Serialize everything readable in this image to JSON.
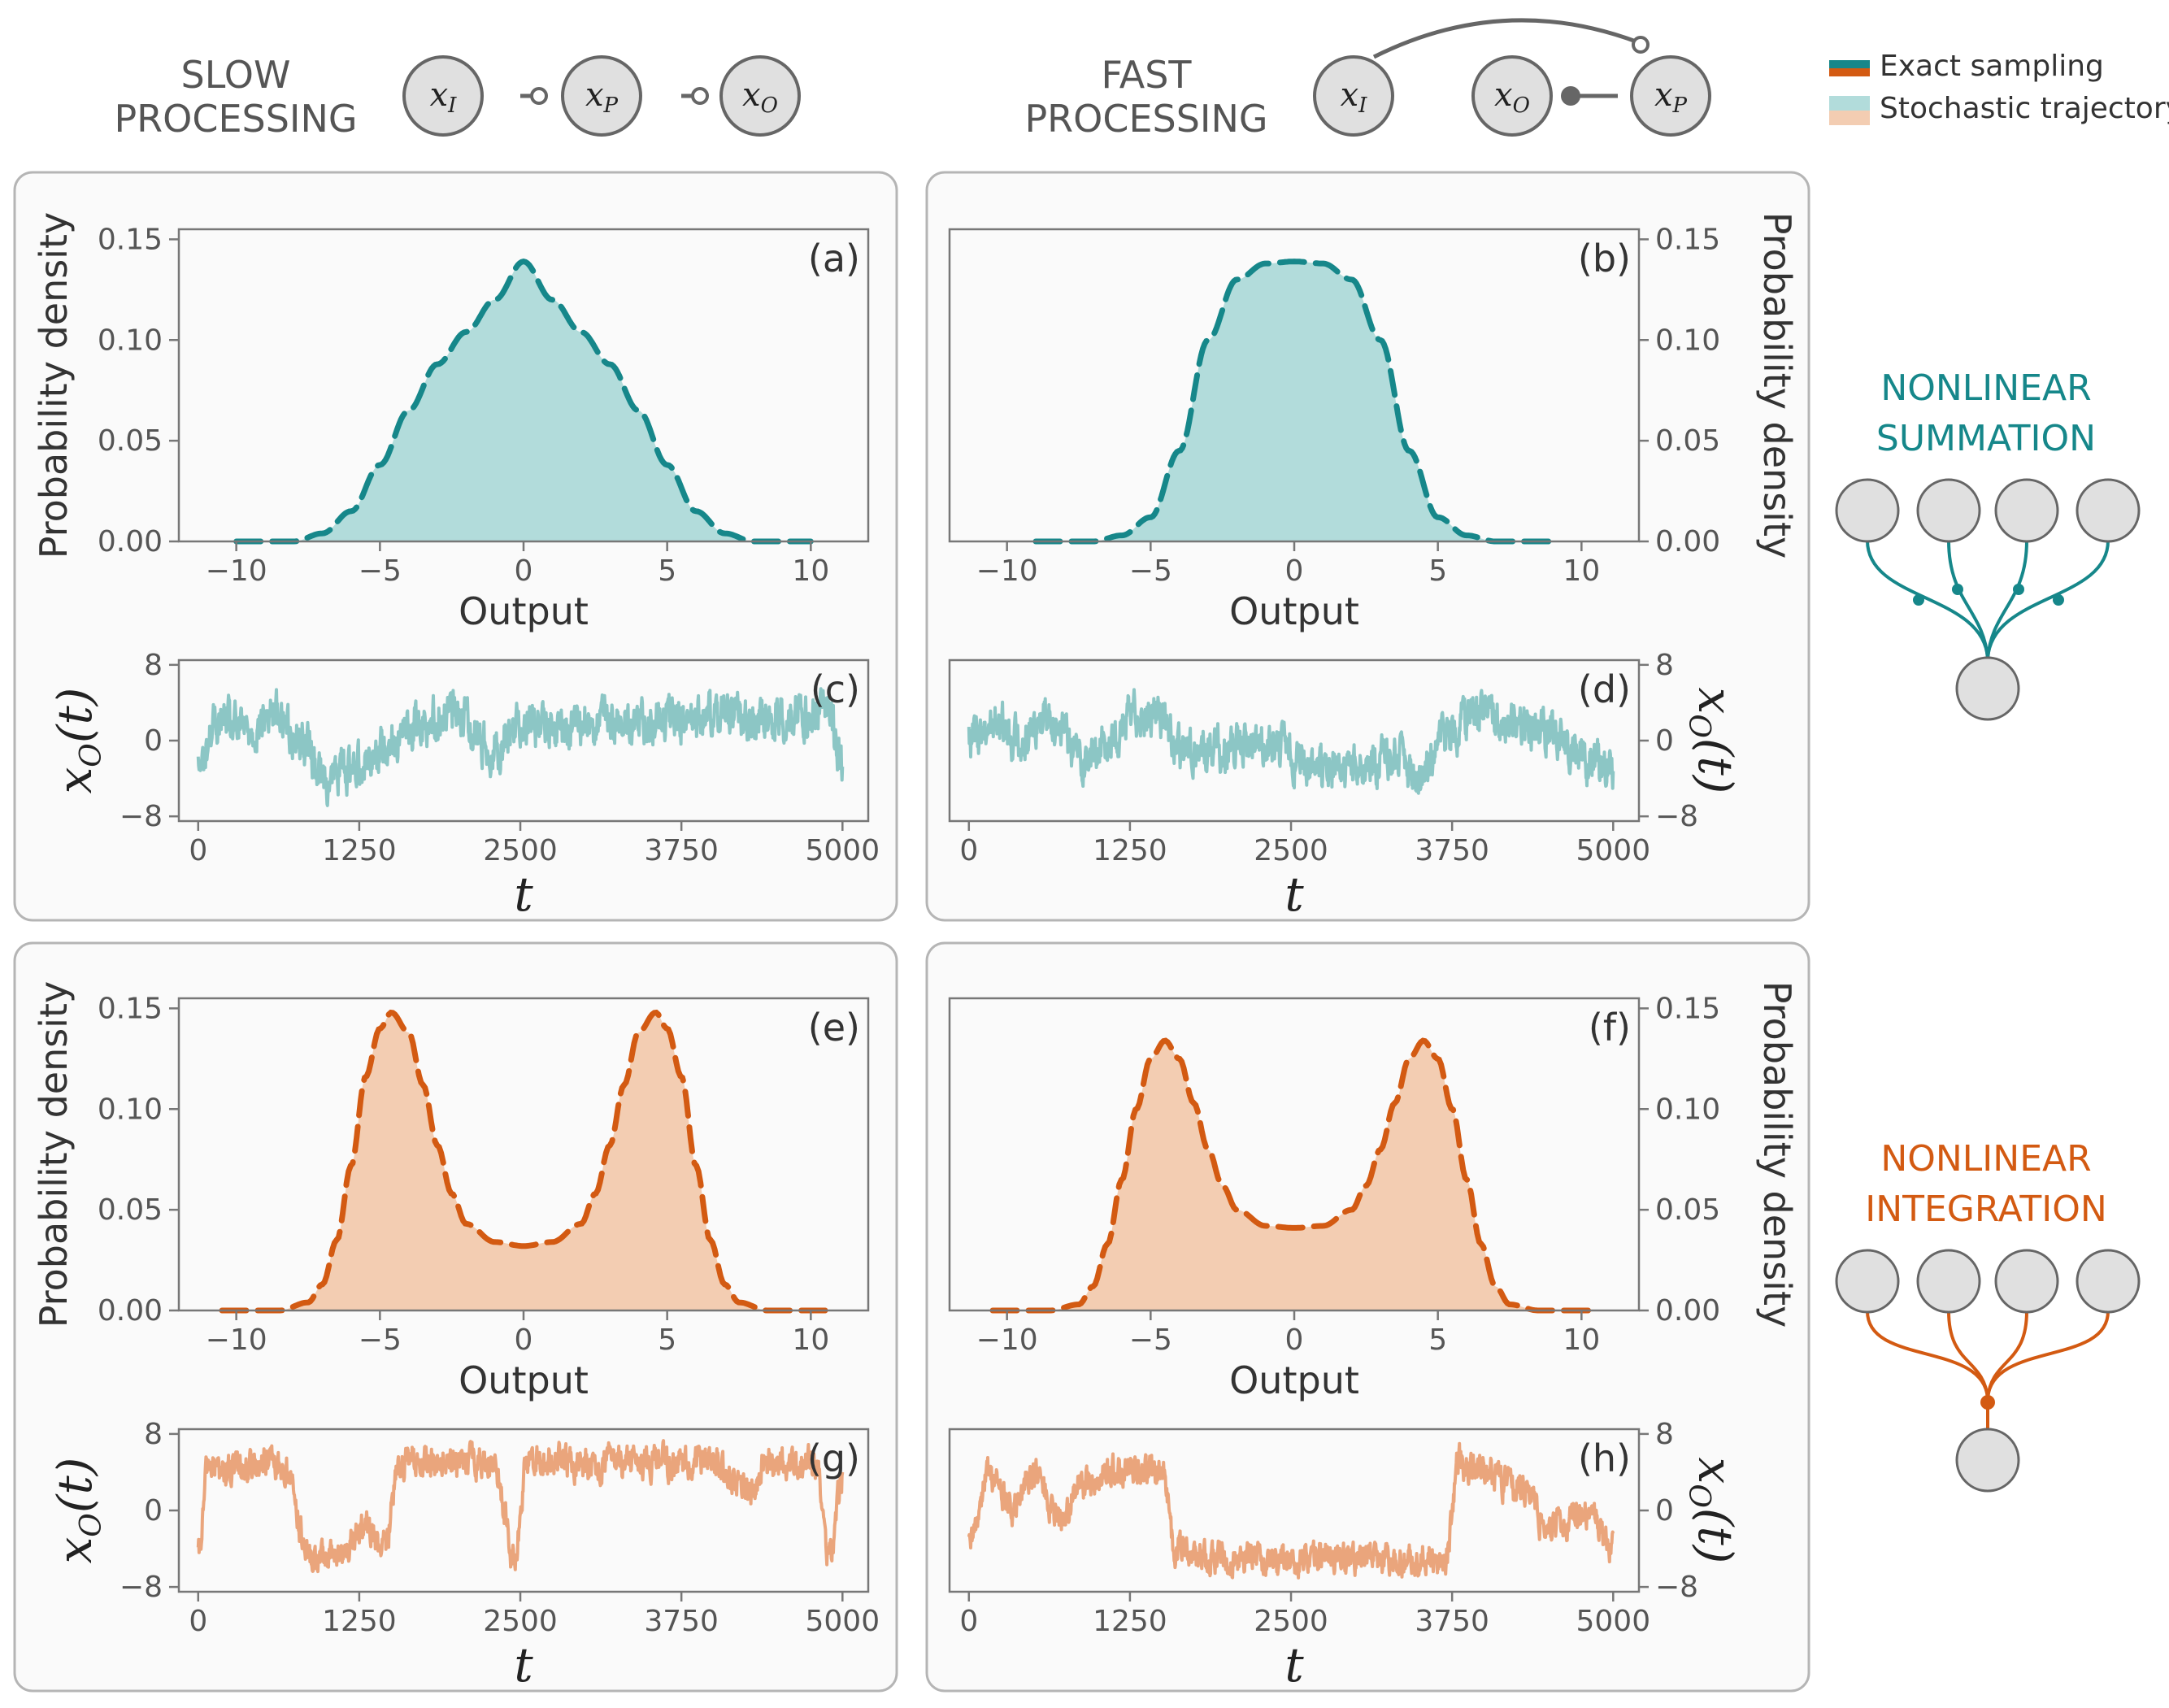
{
  "colors": {
    "teal": "#16878a",
    "teal_fill": "#b2dcdb",
    "teal_trace": "#8cc6c5",
    "orange": "#d35a12",
    "orange_fill": "#f3cdb2",
    "orange_trace": "#eaa57c",
    "node_fill": "#e0e0e0",
    "node_stroke": "#666666",
    "panel_bg": "#fafafa",
    "panel_border": "#b5b5b5"
  },
  "legend": {
    "exact": "Exact sampling",
    "stochastic": "Stochastic trajectory"
  },
  "headers": {
    "slow_line1": "SLOW",
    "slow_line2": "PROCESSING",
    "fast_line1": "FAST",
    "fast_line2": "PROCESSING"
  },
  "slow_network": {
    "nodes": [
      "I",
      "P",
      "O"
    ],
    "arrows": "x_I → x_P → x_O (open-circle heads)"
  },
  "fast_network": {
    "nodes": [
      "I",
      "O",
      "P"
    ]
  },
  "side_labels": {
    "summation_line1": "NONLINEAR",
    "summation_line2": "SUMMATION",
    "integration_line1": "NONLINEAR",
    "integration_line2": "INTEGRATION"
  },
  "axis_text": {
    "density_ylabel": "Probability density",
    "output_xlabel": "Output",
    "t_xlabel": "t",
    "trace_ylabel": "x_O(t)"
  },
  "chart_data": [
    {
      "id": "a",
      "panel_label": "(a)",
      "type": "line",
      "title": "",
      "xlabel": "Output",
      "ylabel": "Probability density",
      "xlim": [
        -12,
        12
      ],
      "ylim": [
        0,
        0.155
      ],
      "xticks": [
        -10,
        -5,
        0,
        5,
        10
      ],
      "xtick_labels": [
        "−10",
        "−5",
        "0",
        "5",
        "10"
      ],
      "yticks": [
        0,
        0.05,
        0.1,
        0.15
      ],
      "ytick_labels": [
        "0.00",
        "0.05",
        "0.10",
        "0.15"
      ],
      "ylabel_side": "left",
      "color": "teal",
      "series": [
        {
          "name": "Exact sampling",
          "style": "dashed",
          "x": [
            -10,
            -8,
            -7,
            -6,
            -5,
            -4,
            -3,
            -2,
            -1,
            0,
            1,
            2,
            3,
            4,
            5,
            6,
            7,
            8,
            10
          ],
          "y": [
            0,
            0,
            0.004,
            0.015,
            0.038,
            0.065,
            0.088,
            0.104,
            0.12,
            0.139,
            0.12,
            0.104,
            0.088,
            0.065,
            0.038,
            0.015,
            0.004,
            0,
            0
          ]
        }
      ],
      "fill_series": {
        "name": "Stochastic trajectory",
        "style": "histogram-area"
      },
      "grid": false
    },
    {
      "id": "b",
      "panel_label": "(b)",
      "type": "line",
      "title": "",
      "xlabel": "Output",
      "ylabel": "Probability density",
      "xlim": [
        -12,
        12
      ],
      "ylim": [
        0,
        0.155
      ],
      "xticks": [
        -10,
        -5,
        0,
        5,
        10
      ],
      "xtick_labels": [
        "−10",
        "−5",
        "0",
        "5",
        "10"
      ],
      "yticks": [
        0,
        0.05,
        0.1,
        0.15
      ],
      "ytick_labels": [
        "0.00",
        "0.05",
        "0.10",
        "0.15"
      ],
      "ylabel_side": "right",
      "color": "teal",
      "series": [
        {
          "name": "Exact sampling",
          "style": "dashed",
          "x": [
            -9,
            -7,
            -6,
            -5,
            -4,
            -3,
            -2,
            -1,
            0,
            1,
            2,
            3,
            4,
            5,
            6,
            7,
            9
          ],
          "y": [
            0,
            0,
            0.003,
            0.012,
            0.045,
            0.1,
            0.13,
            0.138,
            0.139,
            0.138,
            0.13,
            0.1,
            0.045,
            0.012,
            0.003,
            0,
            0
          ]
        }
      ],
      "fill_series": {
        "name": "Stochastic trajectory",
        "style": "histogram-area"
      },
      "grid": false
    },
    {
      "id": "e",
      "panel_label": "(e)",
      "type": "line",
      "title": "",
      "xlabel": "Output",
      "ylabel": "Probability density",
      "xlim": [
        -12,
        12
      ],
      "ylim": [
        0,
        0.155
      ],
      "xticks": [
        -10,
        -5,
        0,
        5,
        10
      ],
      "xtick_labels": [
        "−10",
        "−5",
        "0",
        "5",
        "10"
      ],
      "yticks": [
        0,
        0.05,
        0.1,
        0.15
      ],
      "ytick_labels": [
        "0.00",
        "0.05",
        "0.10",
        "0.15"
      ],
      "ylabel_side": "left",
      "color": "orange",
      "series": [
        {
          "name": "Exact sampling",
          "style": "dashed",
          "x": [
            -10.5,
            -8.5,
            -7.5,
            -7,
            -6.5,
            -6,
            -5.5,
            -5,
            -4.6,
            -4,
            -3.5,
            -3,
            -2.5,
            -2,
            -1,
            0,
            1,
            2,
            2.5,
            3,
            3.5,
            4,
            4.6,
            5,
            5.5,
            6,
            6.5,
            7,
            7.5,
            8.5,
            10.5
          ],
          "y": [
            0,
            0,
            0.004,
            0.013,
            0.035,
            0.072,
            0.116,
            0.14,
            0.148,
            0.138,
            0.112,
            0.082,
            0.058,
            0.043,
            0.034,
            0.032,
            0.034,
            0.043,
            0.058,
            0.082,
            0.112,
            0.138,
            0.148,
            0.14,
            0.116,
            0.072,
            0.035,
            0.013,
            0.004,
            0,
            0
          ]
        }
      ],
      "fill_series": {
        "name": "Stochastic trajectory",
        "style": "histogram-area"
      },
      "grid": false
    },
    {
      "id": "f",
      "panel_label": "(f)",
      "type": "line",
      "title": "",
      "xlabel": "Output",
      "ylabel": "Probability density",
      "xlim": [
        -12,
        12
      ],
      "ylim": [
        0,
        0.155
      ],
      "xticks": [
        -10,
        -5,
        0,
        5,
        10
      ],
      "xtick_labels": [
        "−10",
        "−5",
        "0",
        "5",
        "10"
      ],
      "yticks": [
        0,
        0.05,
        0.1,
        0.15
      ],
      "ytick_labels": [
        "0.00",
        "0.05",
        "0.10",
        "0.15"
      ],
      "ylabel_side": "right",
      "color": "orange",
      "series": [
        {
          "name": "Exact sampling",
          "style": "dashed",
          "x": [
            -10.5,
            -8.5,
            -7.5,
            -7,
            -6.5,
            -6,
            -5.5,
            -5,
            -4.5,
            -4,
            -3.5,
            -3,
            -2.5,
            -2,
            -1,
            0,
            1,
            2,
            2.5,
            3,
            3.5,
            4,
            4.5,
            5,
            5.5,
            6,
            6.5,
            7,
            7.5,
            8.5,
            10.5
          ],
          "y": [
            0,
            0,
            0.003,
            0.012,
            0.033,
            0.065,
            0.1,
            0.125,
            0.134,
            0.125,
            0.103,
            0.08,
            0.062,
            0.05,
            0.042,
            0.041,
            0.042,
            0.05,
            0.062,
            0.08,
            0.103,
            0.125,
            0.134,
            0.125,
            0.1,
            0.065,
            0.033,
            0.012,
            0.003,
            0,
            0
          ]
        }
      ],
      "fill_series": {
        "name": "Stochastic trajectory",
        "style": "histogram-area"
      },
      "grid": false
    },
    {
      "id": "c",
      "panel_label": "(c)",
      "type": "line",
      "xlabel": "t",
      "ylabel": "x_O(t)",
      "ylabel_side": "left",
      "xlim": [
        -150,
        5200
      ],
      "ylim": [
        -8.5,
        8.5
      ],
      "xticks": [
        0,
        1250,
        2500,
        3750,
        5000
      ],
      "xtick_labels": [
        "0",
        "1250",
        "2500",
        "3750",
        "5000"
      ],
      "yticks": [
        -8,
        0,
        8
      ],
      "ytick_labels": [
        "−8",
        "0",
        "8"
      ],
      "color": "teal_trace",
      "trace_style": "noisy-summation",
      "anchors_t": [
        0,
        150,
        400,
        600,
        800,
        1000,
        1150,
        1300,
        1500,
        1750,
        2000,
        2300,
        2500,
        2800,
        3100,
        3400,
        3750,
        4100,
        4400,
        4700,
        4900,
        5000
      ],
      "anchors_x": [
        -3,
        2,
        1,
        3,
        0,
        -4,
        -3,
        -2,
        0,
        2,
        3,
        -1,
        2,
        1,
        2,
        2,
        2,
        3,
        2,
        3,
        3,
        -3
      ]
    },
    {
      "id": "d",
      "panel_label": "(d)",
      "type": "line",
      "xlabel": "t",
      "ylabel": "x_O(t)",
      "ylabel_side": "right",
      "xlim": [
        -150,
        5200
      ],
      "ylim": [
        -8.5,
        8.5
      ],
      "xticks": [
        0,
        1250,
        2500,
        3750,
        5000
      ],
      "xtick_labels": [
        "0",
        "1250",
        "2500",
        "3750",
        "5000"
      ],
      "yticks": [
        -8,
        0,
        8
      ],
      "ytick_labels": [
        "−8",
        "0",
        "8"
      ],
      "color": "teal_trace",
      "trace_style": "noisy-summation",
      "anchors_t": [
        0,
        200,
        400,
        600,
        900,
        1100,
        1300,
        1500,
        1600,
        2000,
        2300,
        2700,
        3000,
        3300,
        3500,
        3700,
        3900,
        4200,
        4500,
        4800,
        5000
      ],
      "anchors_x": [
        0,
        2,
        0,
        3,
        -2,
        0,
        3,
        3,
        -1,
        -1,
        0,
        -3,
        -3,
        -2,
        -4,
        0,
        3,
        2,
        1,
        -2,
        -3
      ]
    },
    {
      "id": "g",
      "panel_label": "(g)",
      "type": "line",
      "xlabel": "t",
      "ylabel": "x_O(t)",
      "ylabel_side": "left",
      "xlim": [
        -150,
        5200
      ],
      "ylim": [
        -8.5,
        8.5
      ],
      "xticks": [
        0,
        1250,
        2500,
        3750,
        5000
      ],
      "xtick_labels": [
        "0",
        "1250",
        "2500",
        "3750",
        "5000"
      ],
      "yticks": [
        -8,
        0,
        8
      ],
      "ytick_labels": [
        "−8",
        "0",
        "8"
      ],
      "color": "orange_trace",
      "trace_style": "noisy-integration",
      "anchors_t": [
        0,
        80,
        200,
        500,
        700,
        850,
        1000,
        1150,
        1300,
        1450,
        1550,
        1750,
        2000,
        2300,
        2450,
        2550,
        3000,
        3500,
        4000,
        4300,
        4400,
        4800,
        4900,
        5000
      ],
      "anchors_x": [
        -5,
        5,
        4,
        5,
        4,
        -5,
        -5,
        -4,
        -2,
        -4,
        5,
        5,
        5,
        5,
        -5,
        5,
        5,
        5,
        5,
        2,
        5,
        5,
        -5,
        3
      ]
    },
    {
      "id": "h",
      "panel_label": "(h)",
      "type": "line",
      "xlabel": "t",
      "ylabel": "x_O(t)",
      "ylabel_side": "right",
      "xlim": [
        -150,
        5200
      ],
      "ylim": [
        -8.5,
        8.5
      ],
      "xticks": [
        0,
        1250,
        2500,
        3750,
        5000
      ],
      "xtick_labels": [
        "0",
        "1250",
        "2500",
        "3750",
        "5000"
      ],
      "yticks": [
        -8,
        0,
        8
      ],
      "ytick_labels": [
        "−8",
        "0",
        "8"
      ],
      "color": "orange_trace",
      "trace_style": "noisy-integration",
      "anchors_t": [
        0,
        150,
        350,
        500,
        700,
        900,
        1100,
        1300,
        1500,
        1600,
        1900,
        2300,
        2800,
        3300,
        3700,
        3800,
        4000,
        4300,
        4500,
        4800,
        5000
      ],
      "anchors_x": [
        -4,
        4,
        0,
        4,
        -1,
        3,
        4,
        4,
        4,
        -4,
        -5,
        -5,
        -5,
        -5,
        -5,
        5,
        4,
        2,
        -2,
        0,
        -4
      ]
    }
  ]
}
